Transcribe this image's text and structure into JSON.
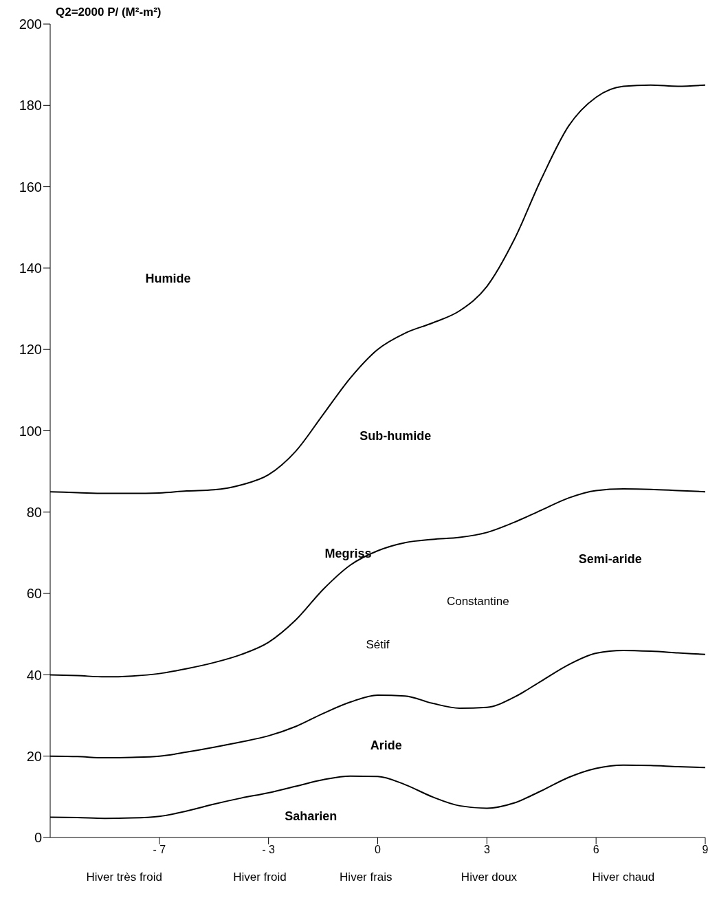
{
  "chart_data": {
    "type": "line",
    "ylabel": "Q2=2000 P/ (M²-m²)",
    "categories": [
      null,
      null,
      null,
      null,
      "- 7",
      null,
      null,
      null,
      "- 3",
      null,
      null,
      null,
      "0",
      null,
      null,
      null,
      "3",
      null,
      null,
      null,
      "6",
      null,
      null,
      null,
      "9"
    ],
    "ylim": [
      0,
      200
    ],
    "yticks": [
      0,
      20,
      40,
      60,
      80,
      100,
      120,
      140,
      160,
      180,
      200
    ],
    "marker": "none",
    "grid": false,
    "legend": false,
    "series": [
      {
        "color": "#000000",
        "values": [
          85,
          84.8,
          84.6,
          84.6,
          84.7,
          85.2,
          85.5,
          86.7,
          89.2,
          95,
          104,
          113,
          120,
          124,
          126.5,
          129.5,
          135.5,
          147,
          162,
          175,
          182,
          184.7,
          185,
          184.7,
          185
        ]
      },
      {
        "color": "#000000",
        "values": [
          40,
          39.8,
          39.5,
          39.7,
          40.3,
          41.5,
          43,
          45,
          48,
          53.5,
          61,
          67,
          70.5,
          72.5,
          73.3,
          73.8,
          75,
          77.5,
          80.5,
          83.5,
          85.3,
          85.7,
          85.6,
          85.3,
          85
        ]
      },
      {
        "color": "#000000",
        "values": [
          20,
          19.9,
          19.6,
          19.7,
          20,
          21,
          22.2,
          23.5,
          25,
          27.3,
          30.5,
          33.3,
          35,
          34.8,
          33,
          31.8,
          32,
          34.5,
          38.5,
          42.5,
          45.3,
          46,
          45.8,
          45.4,
          45
        ]
      },
      {
        "color": "#000000",
        "values": [
          5,
          4.9,
          4.7,
          4.8,
          5.2,
          6.5,
          8.2,
          9.7,
          11,
          12.6,
          14.2,
          15.1,
          15,
          13,
          10,
          7.8,
          7.2,
          8.5,
          11.5,
          14.8,
          17,
          17.8,
          17.7,
          17.4,
          17.2
        ]
      }
    ],
    "annotations": [
      "Humide",
      "Sub-humide",
      "Megriss",
      "Semi-aride",
      "Constantine",
      "Sétif",
      "Aride",
      "Saharien",
      "Hiver très froid",
      "Hiver froid",
      "Hiver frais",
      "Hiver doux",
      "Hiver chaud"
    ]
  }
}
